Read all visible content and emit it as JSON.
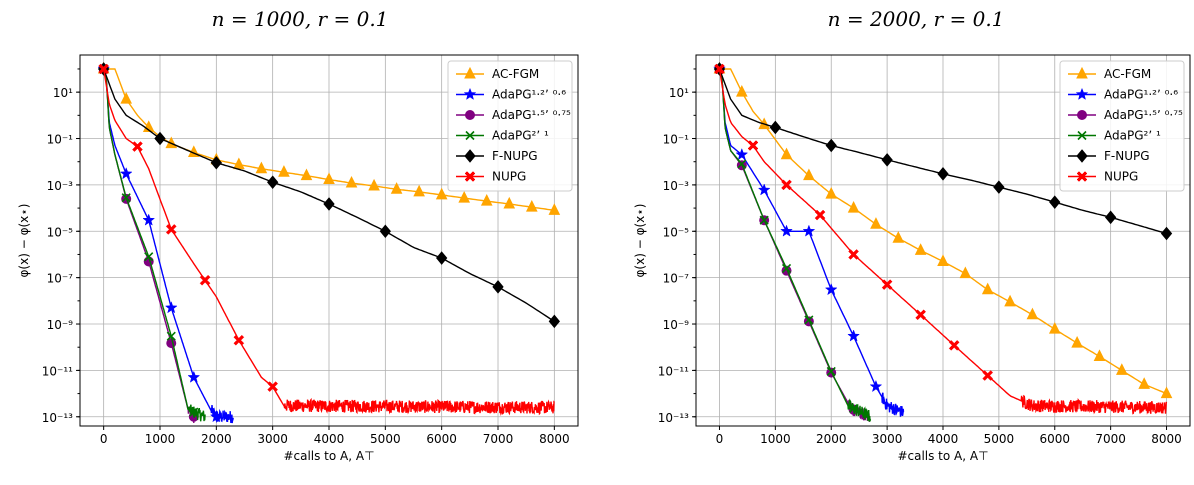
{
  "chart_data": [
    {
      "type": "line",
      "title": "n = 1000, r = 0.1",
      "xlabel": "#calls to A, A⊤",
      "ylabel": "φ(x) − φ(x⋆)",
      "yscale": "log",
      "xlim": [
        -420,
        8420
      ],
      "ylim": [
        4e-14,
        400
      ],
      "xticks": [
        0,
        1000,
        2000,
        3000,
        4000,
        5000,
        6000,
        7000,
        8000
      ],
      "xtick_labels": [
        "0",
        "1000",
        "2000",
        "3000",
        "4000",
        "5000",
        "6000",
        "7000",
        "8000"
      ],
      "yticks": [
        1e-13,
        1e-11,
        1e-09,
        1e-07,
        1e-05,
        0.001,
        0.1,
        10
      ],
      "ytick_labels": [
        "10⁻¹³",
        "10⁻¹¹",
        "10⁻⁹",
        "10⁻⁷",
        "10⁻⁵",
        "10⁻³",
        "10⁻¹",
        "10¹"
      ],
      "grid": true,
      "legend_position": "top-right",
      "series": [
        {
          "name": "AC-FGM",
          "color": "#ffa500",
          "marker": "triangle",
          "x": [
            0,
            200,
            400,
            600,
            800,
            1000,
            1200,
            1600,
            2000,
            2400,
            2800,
            3200,
            3600,
            4000,
            4400,
            4800,
            5200,
            5600,
            6000,
            6400,
            6800,
            7200,
            7600,
            8000
          ],
          "y": [
            100,
            100,
            5,
            1,
            0.3,
            0.12,
            0.06,
            0.025,
            0.012,
            0.0075,
            0.005,
            0.0035,
            0.0025,
            0.0017,
            0.0012,
            0.0009,
            0.00065,
            0.0005,
            0.00037,
            0.00027,
            0.0002,
            0.00015,
            0.00011,
            8e-05
          ],
          "markers_x": [
            0,
            400,
            800,
            1200,
            1600,
            2000,
            2400,
            2800,
            3200,
            3600,
            4000,
            4400,
            4800,
            5200,
            5600,
            6000,
            6400,
            6800,
            7200,
            7600,
            8000
          ]
        },
        {
          "name": "AdaPG¹·²ʼ ⁰·⁶",
          "color": "#0000ff",
          "marker": "star",
          "x": [
            0,
            50,
            100,
            200,
            400,
            800,
            1200,
            1600,
            1900,
            2000,
            2200,
            2300
          ],
          "y": [
            100,
            30,
            0.5,
            0.05,
            0.003,
            3e-05,
            5e-09,
            5e-12,
            2e-13,
            1e-13,
            1e-13,
            1e-13
          ],
          "markers_x": [
            0,
            400,
            800,
            1200,
            1600,
            2000
          ],
          "noise_after": 1900
        },
        {
          "name": "AdaPG¹·⁵ʼ ⁰·⁷⁵",
          "color": "#800080",
          "marker": "circle",
          "x": [
            0,
            50,
            100,
            200,
            400,
            800,
            1200,
            1500,
            1600
          ],
          "y": [
            100,
            30,
            0.3,
            0.02,
            0.00025,
            5e-07,
            1.5e-10,
            2e-13,
            1e-13
          ],
          "markers_x": [
            0,
            400,
            800,
            1200,
            1600
          ],
          "noise_after": 1500
        },
        {
          "name": "AdaPG²ʼ ¹",
          "color": "#007700",
          "marker": "x",
          "x": [
            0,
            50,
            100,
            200,
            400,
            800,
            1200,
            1500,
            1800
          ],
          "y": [
            100,
            30,
            0.3,
            0.02,
            0.00028,
            8e-07,
            3e-10,
            2e-13,
            1e-13
          ],
          "markers_x": [
            0,
            400,
            800,
            1200,
            1600
          ],
          "noise_after": 1500
        },
        {
          "name": "F-NUPG",
          "color": "#000000",
          "marker": "diamond",
          "x": [
            0,
            200,
            400,
            700,
            1000,
            1500,
            2000,
            2500,
            3000,
            3500,
            4000,
            4500,
            5000,
            5500,
            6000,
            6500,
            7000,
            7500,
            8000
          ],
          "y": [
            100,
            5,
            1,
            0.35,
            0.1,
            0.03,
            0.009,
            0.004,
            0.0013,
            0.0005,
            0.00015,
            4e-05,
            1e-05,
            2e-06,
            7e-07,
            1.5e-07,
            4e-08,
            8e-09,
            1.3e-09
          ],
          "markers_x": [
            0,
            1000,
            2000,
            3000,
            4000,
            5000,
            6000,
            7000,
            8000
          ]
        },
        {
          "name": "NUPG",
          "color": "#ff0000",
          "marker": "plus",
          "x": [
            0,
            100,
            200,
            400,
            600,
            800,
            1200,
            1600,
            2000,
            2400,
            2800,
            3000,
            3200,
            8000
          ],
          "y": [
            100,
            3,
            0.6,
            0.1,
            0.045,
            0.005,
            1.2e-05,
            4e-07,
            1.5e-08,
            2e-10,
            5e-12,
            2e-12,
            3e-13,
            2.5e-13
          ],
          "markers_x": [
            0,
            600,
            1200,
            1800,
            2400,
            3000
          ],
          "noise_after": 3200
        }
      ]
    },
    {
      "type": "line",
      "title": "n = 2000, r = 0.1",
      "xlabel": "#calls to A, A⊤",
      "ylabel": "φ(x) − φ(x⋆)",
      "yscale": "log",
      "xlim": [
        -420,
        8420
      ],
      "ylim": [
        4e-14,
        400
      ],
      "xticks": [
        0,
        1000,
        2000,
        3000,
        4000,
        5000,
        6000,
        7000,
        8000
      ],
      "xtick_labels": [
        "0",
        "1000",
        "2000",
        "3000",
        "4000",
        "5000",
        "6000",
        "7000",
        "8000"
      ],
      "yticks": [
        1e-13,
        1e-11,
        1e-09,
        1e-07,
        1e-05,
        0.001,
        0.1,
        10
      ],
      "ytick_labels": [
        "10⁻¹³",
        "10⁻¹¹",
        "10⁻⁹",
        "10⁻⁷",
        "10⁻⁵",
        "10⁻³",
        "10⁻¹",
        "10¹"
      ],
      "grid": true,
      "legend_position": "top-right",
      "series": [
        {
          "name": "AC-FGM",
          "color": "#ffa500",
          "marker": "triangle",
          "x": [
            0,
            200,
            400,
            600,
            800,
            1200,
            1600,
            2000,
            2400,
            2800,
            3200,
            3600,
            4000,
            4400,
            4800,
            5200,
            5600,
            6000,
            6400,
            6800,
            7200,
            7600,
            8000
          ],
          "y": [
            100,
            100,
            10,
            1.5,
            0.4,
            0.02,
            0.0025,
            0.0004,
            0.0001,
            2e-05,
            5e-06,
            1.5e-06,
            5e-07,
            1.5e-07,
            3e-08,
            9e-09,
            2.5e-09,
            6e-10,
            1.5e-10,
            4e-11,
            1e-11,
            2.5e-12,
            1e-12
          ],
          "markers_x": [
            0,
            400,
            800,
            1200,
            1600,
            2000,
            2400,
            2800,
            3200,
            3600,
            4000,
            4400,
            4800,
            5200,
            5600,
            6000,
            6400,
            6800,
            7200,
            7600,
            8000
          ]
        },
        {
          "name": "AdaPG¹·²ʼ ⁰·⁶",
          "color": "#0000ff",
          "marker": "star",
          "x": [
            0,
            50,
            100,
            200,
            400,
            800,
            1200,
            1600,
            2000,
            2400,
            2800,
            3000,
            3300
          ],
          "y": [
            100,
            30,
            0.5,
            0.05,
            0.02,
            0.0006,
            1e-05,
            1e-05,
            3e-08,
            3e-10,
            2e-12,
            3e-13,
            1.5e-13
          ],
          "markers_x": [
            0,
            400,
            800,
            1200,
            1600,
            2000,
            2400,
            2800
          ],
          "noise_after": 2900
        },
        {
          "name": "AdaPG¹·⁵ʼ ⁰·⁷⁵",
          "color": "#800080",
          "marker": "circle",
          "x": [
            0,
            50,
            100,
            200,
            400,
            800,
            1200,
            1600,
            2000,
            2300,
            2400,
            2700
          ],
          "y": [
            100,
            30,
            0.3,
            0.03,
            0.007,
            3e-05,
            2e-07,
            1.3e-09,
            8e-12,
            4e-13,
            2e-13,
            1e-13
          ],
          "markers_x": [
            0,
            400,
            800,
            1200,
            1600,
            2000,
            2400
          ],
          "noise_after": 2300
        },
        {
          "name": "AdaPG²ʼ ¹",
          "color": "#007700",
          "marker": "x",
          "x": [
            0,
            50,
            100,
            200,
            400,
            800,
            1200,
            1600,
            2000,
            2300,
            2700
          ],
          "y": [
            100,
            30,
            0.3,
            0.03,
            0.008,
            3e-05,
            2.5e-07,
            1.5e-09,
            9e-12,
            3e-13,
            1e-13
          ],
          "markers_x": [
            0,
            400,
            800,
            1200,
            1600,
            2000,
            2400
          ],
          "noise_after": 2300
        },
        {
          "name": "F-NUPG",
          "color": "#000000",
          "marker": "diamond",
          "x": [
            0,
            200,
            400,
            700,
            1000,
            1500,
            2000,
            2500,
            3000,
            3500,
            4000,
            4500,
            5000,
            5500,
            6000,
            6500,
            7000,
            7500,
            8000
          ],
          "y": [
            100,
            5,
            1,
            0.5,
            0.3,
            0.12,
            0.05,
            0.025,
            0.012,
            0.006,
            0.003,
            0.0016,
            0.0008,
            0.0004,
            0.00018,
            8e-05,
            4e-05,
            1.8e-05,
            8e-06
          ],
          "markers_x": [
            0,
            1000,
            2000,
            3000,
            4000,
            5000,
            6000,
            7000,
            8000
          ]
        },
        {
          "name": "NUPG",
          "color": "#ff0000",
          "marker": "plus",
          "x": [
            0,
            100,
            200,
            400,
            600,
            800,
            1200,
            1800,
            2400,
            3000,
            3600,
            4200,
            4800,
            5200,
            5600,
            8000
          ],
          "y": [
            100,
            3,
            0.5,
            0.12,
            0.05,
            0.01,
            0.001,
            5e-05,
            1e-06,
            5e-08,
            2.5e-09,
            1.2e-10,
            6e-12,
            8e-13,
            3e-13,
            2.5e-13
          ],
          "markers_x": [
            0,
            600,
            1200,
            1800,
            2400,
            3000,
            3600,
            4200,
            4800
          ],
          "noise_after": 5400
        }
      ]
    }
  ]
}
